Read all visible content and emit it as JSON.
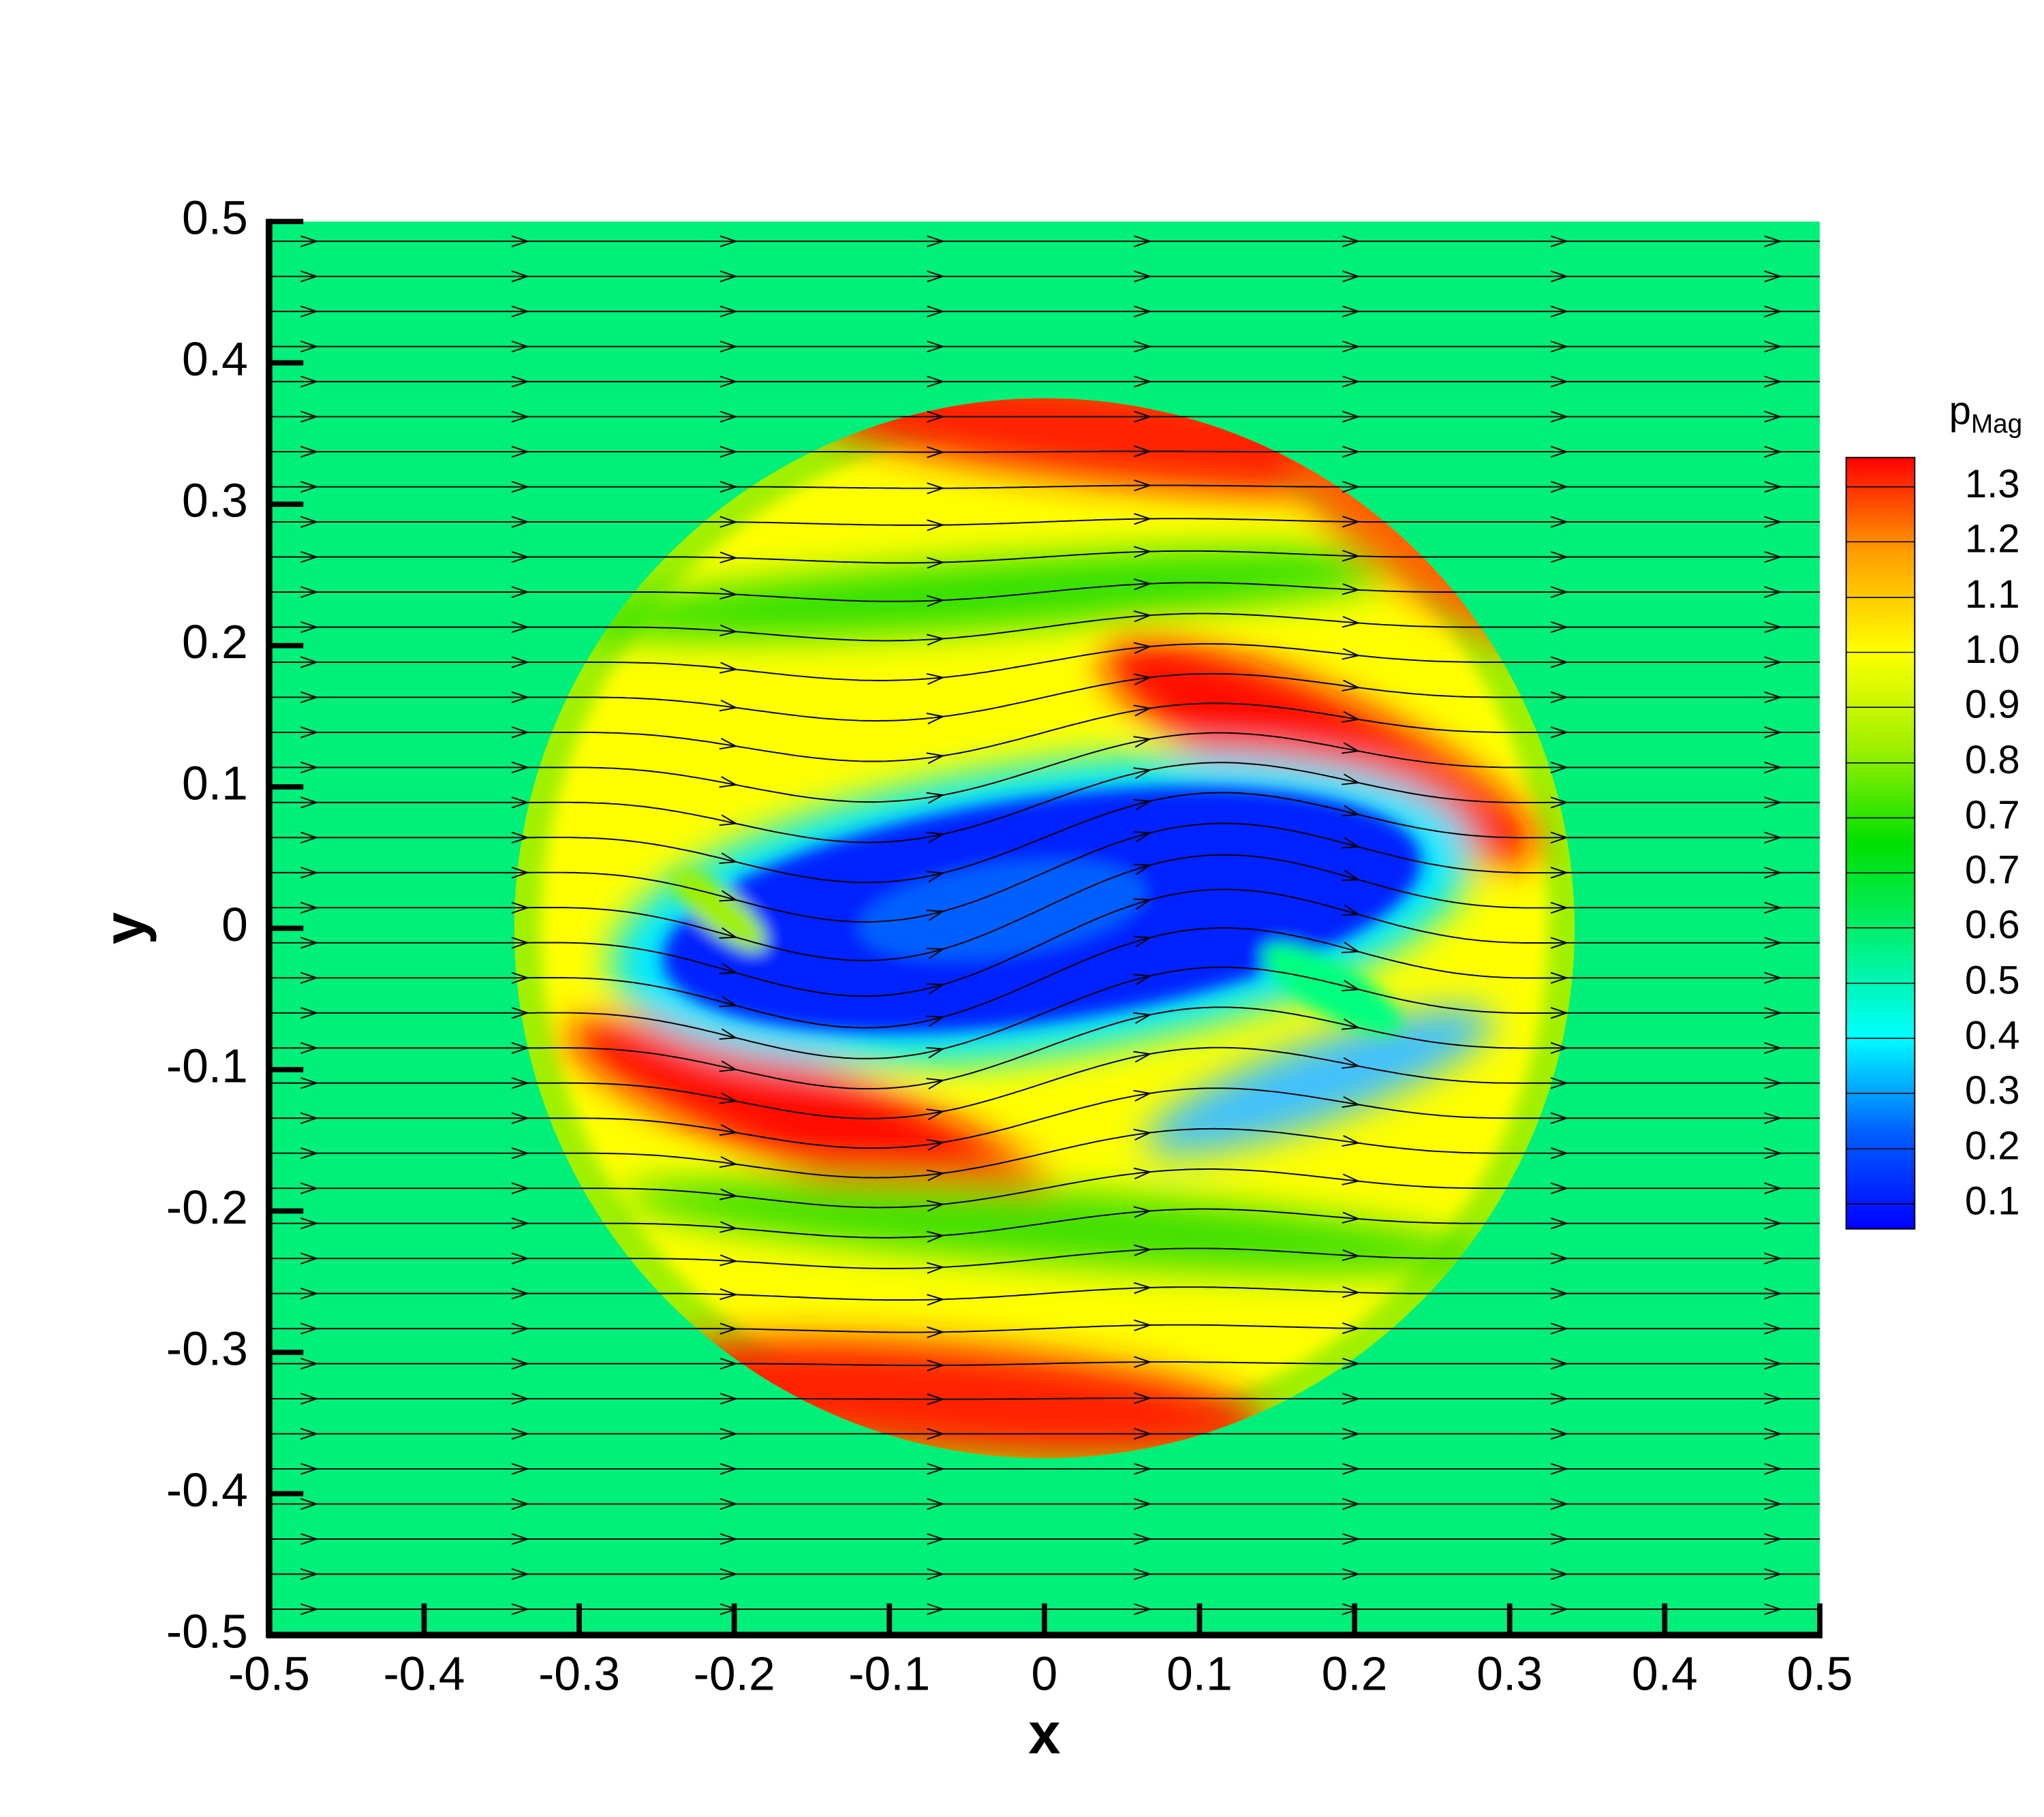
{
  "chart_data": {
    "type": "contour",
    "xlabel": "x",
    "ylabel": "y",
    "xlim": [
      -0.5,
      0.5
    ],
    "ylim": [
      -0.5,
      0.5
    ],
    "xticks": [
      -0.5,
      -0.4,
      -0.3,
      -0.2,
      -0.1,
      0,
      0.1,
      0.2,
      0.3,
      0.4,
      0.5
    ],
    "yticks": [
      -0.5,
      -0.4,
      -0.3,
      -0.2,
      -0.1,
      0,
      0.1,
      0.2,
      0.3,
      0.4,
      0.5
    ],
    "background_color": "#00f07a",
    "colorbar": {
      "title": "p",
      "title_subscript": "Mag",
      "clim": [
        0.058,
        1.349
      ],
      "colormap": [
        "#0000ff",
        "#0060ff",
        "#00ffff",
        "#00f07a",
        "#00e000",
        "#a0f000",
        "#ffff00",
        "#ffa000",
        "#ff0000"
      ],
      "ticks": [
        {
          "value": 0.1,
          "label": "0.1"
        },
        {
          "value": 0.192,
          "label": "0.2"
        },
        {
          "value": 0.285,
          "label": "0.3"
        },
        {
          "value": 0.377,
          "label": "0.4"
        },
        {
          "value": 0.469,
          "label": "0.5"
        },
        {
          "value": 0.562,
          "label": "0.6"
        },
        {
          "value": 0.654,
          "label": "0.7"
        },
        {
          "value": 0.746,
          "label": "0.7"
        },
        {
          "value": 0.838,
          "label": "0.8"
        },
        {
          "value": 0.931,
          "label": "0.9"
        },
        {
          "value": 1.023,
          "label": "1.0"
        },
        {
          "value": 1.115,
          "label": "1.1"
        },
        {
          "value": 1.208,
          "label": "1.2"
        },
        {
          "value": 1.3,
          "label": "1.3"
        }
      ]
    }
  }
}
